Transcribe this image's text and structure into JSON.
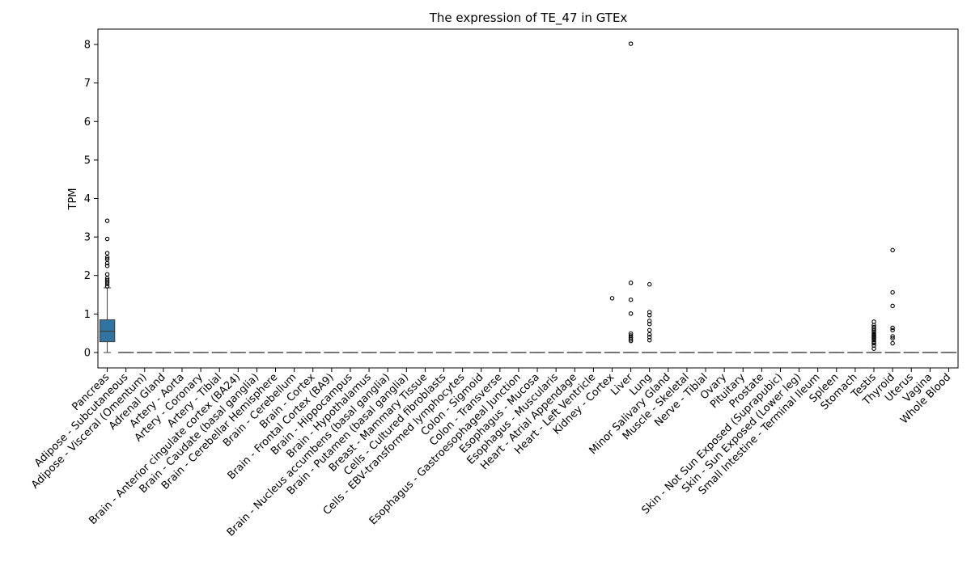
{
  "chart_data": {
    "type": "box",
    "title": "The expression of TE_47 in GTEx",
    "xlabel": "",
    "ylabel": "TPM",
    "ylim": [
      -0.4,
      8.4
    ],
    "yticks": [
      0,
      1,
      2,
      3,
      4,
      5,
      6,
      7,
      8
    ],
    "grid": false,
    "box_color": "#3274a1",
    "categories": [
      "Pancreas",
      "Adipose - Subcutaneous",
      "Adipose - Visceral (Omentum)",
      "Adrenal Gland",
      "Artery - Aorta",
      "Artery - Coronary",
      "Artery - Tibial",
      "Brain - Anterior cingulate cortex (BA24)",
      "Brain - Caudate (basal ganglia)",
      "Brain - Cerebellar Hemisphere",
      "Brain - Cerebellum",
      "Brain - Cortex",
      "Brain - Frontal Cortex (BA9)",
      "Brain - Hippocampus",
      "Brain - Hypothalamus",
      "Brain - Nucleus accumbens (basal ganglia)",
      "Brain - Putamen (basal ganglia)",
      "Breast - Mammary Tissue",
      "Cells - Cultured fibroblasts",
      "Cells - EBV-transformed lymphocytes",
      "Colon - Sigmoid",
      "Colon - Transverse",
      "Esophagus - Gastroesophageal Junction",
      "Esophagus - Mucosa",
      "Esophagus - Muscularis",
      "Heart - Atrial Appendage",
      "Heart - Left Ventricle",
      "Kidney - Cortex",
      "Liver",
      "Lung",
      "Minor Salivary Gland",
      "Muscle - Skeletal",
      "Nerve - Tibial",
      "Ovary",
      "Pituitary",
      "Prostate",
      "Skin - Not Sun Exposed (Suprapubic)",
      "Skin - Sun Exposed (Lower leg)",
      "Small Intestine - Terminal Ileum",
      "Spleen",
      "Stomach",
      "Testis",
      "Thyroid",
      "Uterus",
      "Vagina",
      "Whole Blood"
    ],
    "boxes": [
      {
        "category": "Pancreas",
        "q1": 0.28,
        "median": 0.55,
        "q3": 0.85,
        "whisker_low": 0.0,
        "whisker_high": 1.68,
        "outliers": [
          3.42,
          2.95,
          2.58,
          2.47,
          2.42,
          2.32,
          2.25,
          2.03,
          1.93,
          1.88,
          1.83,
          1.78,
          1.72
        ]
      },
      {
        "category": "Adipose - Subcutaneous",
        "q1": 0,
        "median": 0,
        "q3": 0,
        "whisker_low": 0,
        "whisker_high": 0,
        "outliers": []
      },
      {
        "category": "Adipose - Visceral (Omentum)",
        "q1": 0,
        "median": 0,
        "q3": 0,
        "whisker_low": 0,
        "whisker_high": 0,
        "outliers": []
      },
      {
        "category": "Adrenal Gland",
        "q1": 0,
        "median": 0,
        "q3": 0,
        "whisker_low": 0,
        "whisker_high": 0,
        "outliers": []
      },
      {
        "category": "Artery - Aorta",
        "q1": 0,
        "median": 0,
        "q3": 0,
        "whisker_low": 0,
        "whisker_high": 0,
        "outliers": []
      },
      {
        "category": "Artery - Coronary",
        "q1": 0,
        "median": 0,
        "q3": 0,
        "whisker_low": 0,
        "whisker_high": 0,
        "outliers": []
      },
      {
        "category": "Artery - Tibial",
        "q1": 0,
        "median": 0,
        "q3": 0,
        "whisker_low": 0,
        "whisker_high": 0,
        "outliers": []
      },
      {
        "category": "Brain - Anterior cingulate cortex (BA24)",
        "q1": 0,
        "median": 0,
        "q3": 0,
        "whisker_low": 0,
        "whisker_high": 0,
        "outliers": []
      },
      {
        "category": "Brain - Caudate (basal ganglia)",
        "q1": 0,
        "median": 0,
        "q3": 0,
        "whisker_low": 0,
        "whisker_high": 0,
        "outliers": []
      },
      {
        "category": "Brain - Cerebellar Hemisphere",
        "q1": 0,
        "median": 0,
        "q3": 0,
        "whisker_low": 0,
        "whisker_high": 0,
        "outliers": []
      },
      {
        "category": "Brain - Cerebellum",
        "q1": 0,
        "median": 0,
        "q3": 0,
        "whisker_low": 0,
        "whisker_high": 0,
        "outliers": []
      },
      {
        "category": "Brain - Cortex",
        "q1": 0,
        "median": 0,
        "q3": 0,
        "whisker_low": 0,
        "whisker_high": 0,
        "outliers": []
      },
      {
        "category": "Brain - Frontal Cortex (BA9)",
        "q1": 0,
        "median": 0,
        "q3": 0,
        "whisker_low": 0,
        "whisker_high": 0,
        "outliers": []
      },
      {
        "category": "Brain - Hippocampus",
        "q1": 0,
        "median": 0,
        "q3": 0,
        "whisker_low": 0,
        "whisker_high": 0,
        "outliers": []
      },
      {
        "category": "Brain - Hypothalamus",
        "q1": 0,
        "median": 0,
        "q3": 0,
        "whisker_low": 0,
        "whisker_high": 0,
        "outliers": []
      },
      {
        "category": "Brain - Nucleus accumbens (basal ganglia)",
        "q1": 0,
        "median": 0,
        "q3": 0,
        "whisker_low": 0,
        "whisker_high": 0,
        "outliers": []
      },
      {
        "category": "Brain - Putamen (basal ganglia)",
        "q1": 0,
        "median": 0,
        "q3": 0,
        "whisker_low": 0,
        "whisker_high": 0,
        "outliers": []
      },
      {
        "category": "Breast - Mammary Tissue",
        "q1": 0,
        "median": 0,
        "q3": 0,
        "whisker_low": 0,
        "whisker_high": 0,
        "outliers": []
      },
      {
        "category": "Cells - Cultured fibroblasts",
        "q1": 0,
        "median": 0,
        "q3": 0,
        "whisker_low": 0,
        "whisker_high": 0,
        "outliers": []
      },
      {
        "category": "Cells - EBV-transformed lymphocytes",
        "q1": 0,
        "median": 0,
        "q3": 0,
        "whisker_low": 0,
        "whisker_high": 0,
        "outliers": []
      },
      {
        "category": "Colon - Sigmoid",
        "q1": 0,
        "median": 0,
        "q3": 0,
        "whisker_low": 0,
        "whisker_high": 0,
        "outliers": []
      },
      {
        "category": "Colon - Transverse",
        "q1": 0,
        "median": 0,
        "q3": 0,
        "whisker_low": 0,
        "whisker_high": 0,
        "outliers": []
      },
      {
        "category": "Esophagus - Gastroesophageal Junction",
        "q1": 0,
        "median": 0,
        "q3": 0,
        "whisker_low": 0,
        "whisker_high": 0,
        "outliers": []
      },
      {
        "category": "Esophagus - Mucosa",
        "q1": 0,
        "median": 0,
        "q3": 0,
        "whisker_low": 0,
        "whisker_high": 0,
        "outliers": []
      },
      {
        "category": "Esophagus - Muscularis",
        "q1": 0,
        "median": 0,
        "q3": 0,
        "whisker_low": 0,
        "whisker_high": 0,
        "outliers": []
      },
      {
        "category": "Heart - Atrial Appendage",
        "q1": 0,
        "median": 0,
        "q3": 0,
        "whisker_low": 0,
        "whisker_high": 0,
        "outliers": []
      },
      {
        "category": "Heart - Left Ventricle",
        "q1": 0,
        "median": 0,
        "q3": 0,
        "whisker_low": 0,
        "whisker_high": 0,
        "outliers": []
      },
      {
        "category": "Kidney - Cortex",
        "q1": 0,
        "median": 0,
        "q3": 0,
        "whisker_low": 0,
        "whisker_high": 0,
        "outliers": [
          1.41
        ]
      },
      {
        "category": "Liver",
        "q1": 0,
        "median": 0,
        "q3": 0,
        "whisker_low": 0,
        "whisker_high": 0,
        "outliers": [
          8.02,
          1.81,
          1.37,
          1.01,
          0.49,
          0.44,
          0.39,
          0.34,
          0.3
        ]
      },
      {
        "category": "Lung",
        "q1": 0,
        "median": 0,
        "q3": 0,
        "whisker_low": 0,
        "whisker_high": 0,
        "outliers": [
          1.77,
          1.05,
          0.97,
          0.82,
          0.74,
          0.58,
          0.47,
          0.4,
          0.32
        ]
      },
      {
        "category": "Minor Salivary Gland",
        "q1": 0,
        "median": 0,
        "q3": 0,
        "whisker_low": 0,
        "whisker_high": 0,
        "outliers": []
      },
      {
        "category": "Muscle - Skeletal",
        "q1": 0,
        "median": 0,
        "q3": 0,
        "whisker_low": 0,
        "whisker_high": 0,
        "outliers": []
      },
      {
        "category": "Nerve - Tibial",
        "q1": 0,
        "median": 0,
        "q3": 0,
        "whisker_low": 0,
        "whisker_high": 0,
        "outliers": []
      },
      {
        "category": "Ovary",
        "q1": 0,
        "median": 0,
        "q3": 0,
        "whisker_low": 0,
        "whisker_high": 0,
        "outliers": []
      },
      {
        "category": "Pituitary",
        "q1": 0,
        "median": 0,
        "q3": 0,
        "whisker_low": 0,
        "whisker_high": 0,
        "outliers": []
      },
      {
        "category": "Prostate",
        "q1": 0,
        "median": 0,
        "q3": 0,
        "whisker_low": 0,
        "whisker_high": 0,
        "outliers": []
      },
      {
        "category": "Skin - Not Sun Exposed (Suprapubic)",
        "q1": 0,
        "median": 0,
        "q3": 0,
        "whisker_low": 0,
        "whisker_high": 0,
        "outliers": []
      },
      {
        "category": "Skin - Sun Exposed (Lower leg)",
        "q1": 0,
        "median": 0,
        "q3": 0,
        "whisker_low": 0,
        "whisker_high": 0,
        "outliers": []
      },
      {
        "category": "Small Intestine - Terminal Ileum",
        "q1": 0,
        "median": 0,
        "q3": 0,
        "whisker_low": 0,
        "whisker_high": 0,
        "outliers": []
      },
      {
        "category": "Spleen",
        "q1": 0,
        "median": 0,
        "q3": 0,
        "whisker_low": 0,
        "whisker_high": 0,
        "outliers": []
      },
      {
        "category": "Stomach",
        "q1": 0,
        "median": 0,
        "q3": 0,
        "whisker_low": 0,
        "whisker_high": 0,
        "outliers": []
      },
      {
        "category": "Testis",
        "q1": 0,
        "median": 0,
        "q3": 0,
        "whisker_low": 0,
        "whisker_high": 0,
        "outliers": [
          0.8,
          0.71,
          0.66,
          0.62,
          0.58,
          0.54,
          0.5,
          0.47,
          0.44,
          0.41,
          0.38,
          0.35,
          0.32,
          0.28,
          0.24,
          0.18,
          0.1
        ]
      },
      {
        "category": "Thyroid",
        "q1": 0,
        "median": 0,
        "q3": 0,
        "whisker_low": 0,
        "whisker_high": 0,
        "outliers": [
          2.66,
          1.56,
          1.21,
          0.64,
          0.58,
          0.42,
          0.37,
          0.24
        ]
      },
      {
        "category": "Uterus",
        "q1": 0,
        "median": 0,
        "q3": 0,
        "whisker_low": 0,
        "whisker_high": 0,
        "outliers": []
      },
      {
        "category": "Vagina",
        "q1": 0,
        "median": 0,
        "q3": 0,
        "whisker_low": 0,
        "whisker_high": 0,
        "outliers": []
      },
      {
        "category": "Whole Blood",
        "q1": 0,
        "median": 0,
        "q3": 0,
        "whisker_low": 0,
        "whisker_high": 0,
        "outliers": []
      }
    ]
  }
}
